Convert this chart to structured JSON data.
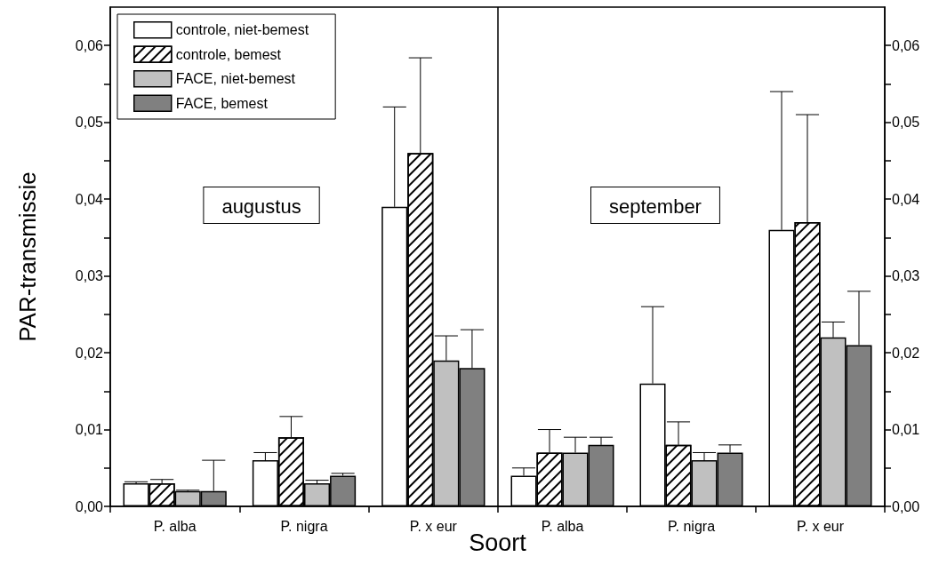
{
  "chart_data": [
    {
      "type": "bar",
      "categories": [
        "P. alba",
        "P. nigra",
        "P. x eur"
      ],
      "xlabel": "Soort",
      "ylabel": "PAR-transmissie",
      "annotations": [
        "augustus"
      ],
      "legend": "top left",
      "grid": false,
      "ylim": [
        0,
        0.065
      ],
      "yticks": [
        {
          "value": 0,
          "label": "0,00"
        },
        {
          "value": 0.005,
          "label": null
        },
        {
          "value": 0.01,
          "label": "0,01"
        },
        {
          "value": 0.015,
          "label": null
        },
        {
          "value": 0.02,
          "label": "0,02"
        },
        {
          "value": 0.025,
          "label": null
        },
        {
          "value": 0.03,
          "label": "0,03"
        },
        {
          "value": 0.035,
          "label": null
        },
        {
          "value": 0.04,
          "label": "0,04"
        },
        {
          "value": 0.045,
          "label": null
        },
        {
          "value": 0.05,
          "label": "0,05"
        },
        {
          "value": 0.055,
          "label": null
        },
        {
          "value": 0.06,
          "label": "0,06"
        }
      ],
      "series": [
        {
          "name": "controle, niet-bemest",
          "color": "#ffffff",
          "values": [
            0.003,
            0.006,
            0.039
          ],
          "errors": [
            [
              0.003,
              0.0032
            ],
            [
              0.006,
              0.007
            ],
            [
              0.039,
              0.052
            ]
          ]
        },
        {
          "name": "controle, bemest",
          "color": "#ffffff",
          "values": [
            0.003,
            0.009,
            0.046
          ],
          "errors": [
            [
              0.003,
              0.0035
            ],
            [
              0.009,
              0.0117
            ],
            [
              0.046,
              0.0584
            ]
          ]
        },
        {
          "name": "FACE, niet-bemest",
          "color": "#c0c0c0",
          "values": [
            0.002,
            0.003,
            0.019
          ],
          "errors": [
            [
              0.002,
              0.0021
            ],
            [
              0.003,
              0.0034
            ],
            [
              0.019,
              0.0222
            ]
          ]
        },
        {
          "name": "FACE, bemest",
          "color": "#808080",
          "values": [
            0.002,
            0.004,
            0.018
          ],
          "errors": [
            [
              0.002,
              0.006
            ],
            [
              0.004,
              0.0043
            ],
            [
              0.018,
              0.023
            ]
          ]
        }
      ]
    },
    {
      "type": "bar",
      "categories": [
        "P. alba",
        "P. nigra",
        "P. x eur"
      ],
      "annotations": [
        "september"
      ],
      "grid": false,
      "y2lim": [
        0,
        0.065
      ],
      "y2ticks": [
        {
          "value": 0,
          "label": "0,00"
        },
        {
          "value": 0.005,
          "label": null
        },
        {
          "value": 0.01,
          "label": "0,01"
        },
        {
          "value": 0.015,
          "label": null
        },
        {
          "value": 0.02,
          "label": "0,02"
        },
        {
          "value": 0.025,
          "label": null
        },
        {
          "value": 0.03,
          "label": "0,03"
        },
        {
          "value": 0.035,
          "label": null
        },
        {
          "value": 0.04,
          "label": "0,04"
        },
        {
          "value": 0.045,
          "label": null
        },
        {
          "value": 0.05,
          "label": "0,05"
        },
        {
          "value": 0.055,
          "label": null
        },
        {
          "value": 0.06,
          "label": "0,06"
        }
      ],
      "series": [
        {
          "color": "#ffffff",
          "axis": "y2",
          "values": [
            0.004,
            0.016,
            0.036
          ],
          "errors": [
            [
              0.004,
              0.005
            ],
            [
              0.016,
              0.026
            ],
            [
              0.036,
              0.054
            ]
          ]
        },
        {
          "color": "#ffffff",
          "axis": "y2",
          "values": [
            0.007,
            0.008,
            0.037
          ],
          "errors": [
            [
              0.007,
              0.01
            ],
            [
              0.008,
              0.011
            ],
            [
              0.037,
              0.051
            ]
          ]
        },
        {
          "color": "#c0c0c0",
          "axis": "y2",
          "values": [
            0.007,
            0.006,
            0.022
          ],
          "errors": [
            [
              0.007,
              0.009
            ],
            [
              0.006,
              0.007
            ],
            [
              0.022,
              0.024
            ]
          ]
        },
        {
          "color": "#808080",
          "axis": "y2",
          "values": [
            0.008,
            0.007,
            0.021
          ],
          "errors": [
            [
              0.008,
              0.009
            ],
            [
              0.007,
              0.008
            ],
            [
              0.021,
              0.028
            ]
          ]
        }
      ]
    }
  ]
}
